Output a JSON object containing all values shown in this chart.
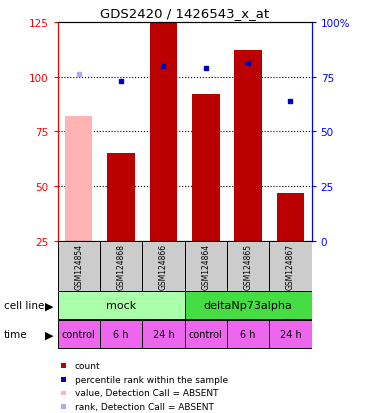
{
  "title": "GDS2420 / 1426543_x_at",
  "samples": [
    "GSM124854",
    "GSM124868",
    "GSM124866",
    "GSM124864",
    "GSM124865",
    "GSM124867"
  ],
  "x_positions": [
    1,
    2,
    3,
    4,
    5,
    6
  ],
  "bar_values": [
    null,
    65,
    125,
    92,
    112,
    47
  ],
  "bar_absent_values": [
    82,
    null,
    null,
    null,
    null,
    null
  ],
  "bar_color_present": "#bb0000",
  "bar_color_absent": "#ffb3b3",
  "rank_values": [
    76,
    73,
    80,
    79,
    81,
    64
  ],
  "rank_absent": [
    true,
    false,
    false,
    false,
    false,
    false
  ],
  "rank_color_present": "#0000bb",
  "rank_color_absent": "#aaaaff",
  "ylim_left": [
    25,
    125
  ],
  "y_ticks_left": [
    25,
    50,
    75,
    100,
    125
  ],
  "y_ticks_right": [
    0,
    25,
    50,
    75,
    100
  ],
  "y_tick_labels_right": [
    "0",
    "25",
    "50",
    "75",
    "100%"
  ],
  "cell_line_mock": "mock",
  "cell_line_delta": "deltaNp73alpha",
  "cell_line_mock_color": "#aaffaa",
  "cell_line_delta_color": "#44dd44",
  "time_labels": [
    "control",
    "6 h",
    "24 h",
    "control",
    "6 h",
    "24 h"
  ],
  "time_color": "#ee66ee",
  "gsm_bg_color": "#cccccc",
  "legend_items": [
    {
      "color": "#bb0000",
      "label": "count"
    },
    {
      "color": "#0000bb",
      "label": "percentile rank within the sample"
    },
    {
      "color": "#ffb3b3",
      "label": "value, Detection Call = ABSENT"
    },
    {
      "color": "#aaaaff",
      "label": "rank, Detection Call = ABSENT"
    }
  ]
}
